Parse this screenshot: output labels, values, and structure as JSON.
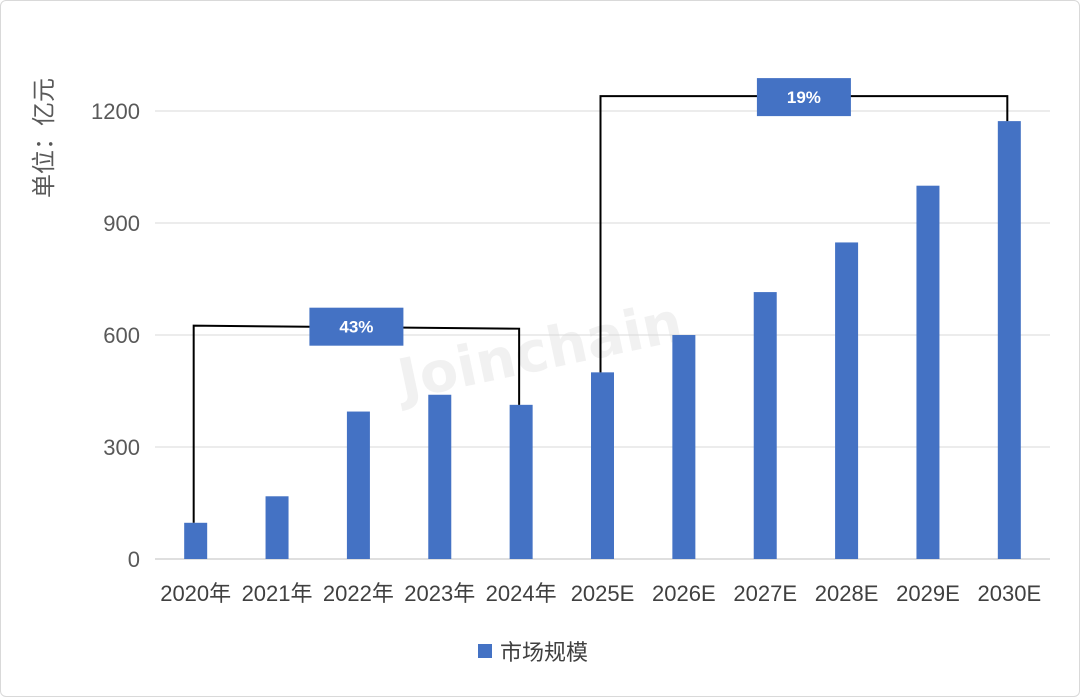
{
  "chart_data": {
    "type": "bar",
    "title": "",
    "xlabel": "",
    "ylabel": "单位：亿元",
    "ylim": [
      0,
      1300
    ],
    "yticks": [
      0,
      300,
      600,
      900,
      1200
    ],
    "grid": true,
    "legend_position": "bottom",
    "categories": [
      "2020年",
      "2021年",
      "2022年",
      "2023年",
      "2024年",
      "2025E",
      "2026E",
      "2027E",
      "2028E",
      "2029E",
      "2030E"
    ],
    "series": [
      {
        "name": "市场规模",
        "color": "#4472c4",
        "values": [
          97,
          168,
          395,
          440,
          413,
          500,
          600,
          715,
          848,
          1000,
          1173
        ]
      }
    ],
    "annotations": [
      {
        "label": "43%",
        "from": "2020年",
        "to": "2024年",
        "level": 625
      },
      {
        "label": "19%",
        "from": "2025E",
        "to": "2030E",
        "level": 1240
      }
    ],
    "watermark": "Joinchain"
  }
}
